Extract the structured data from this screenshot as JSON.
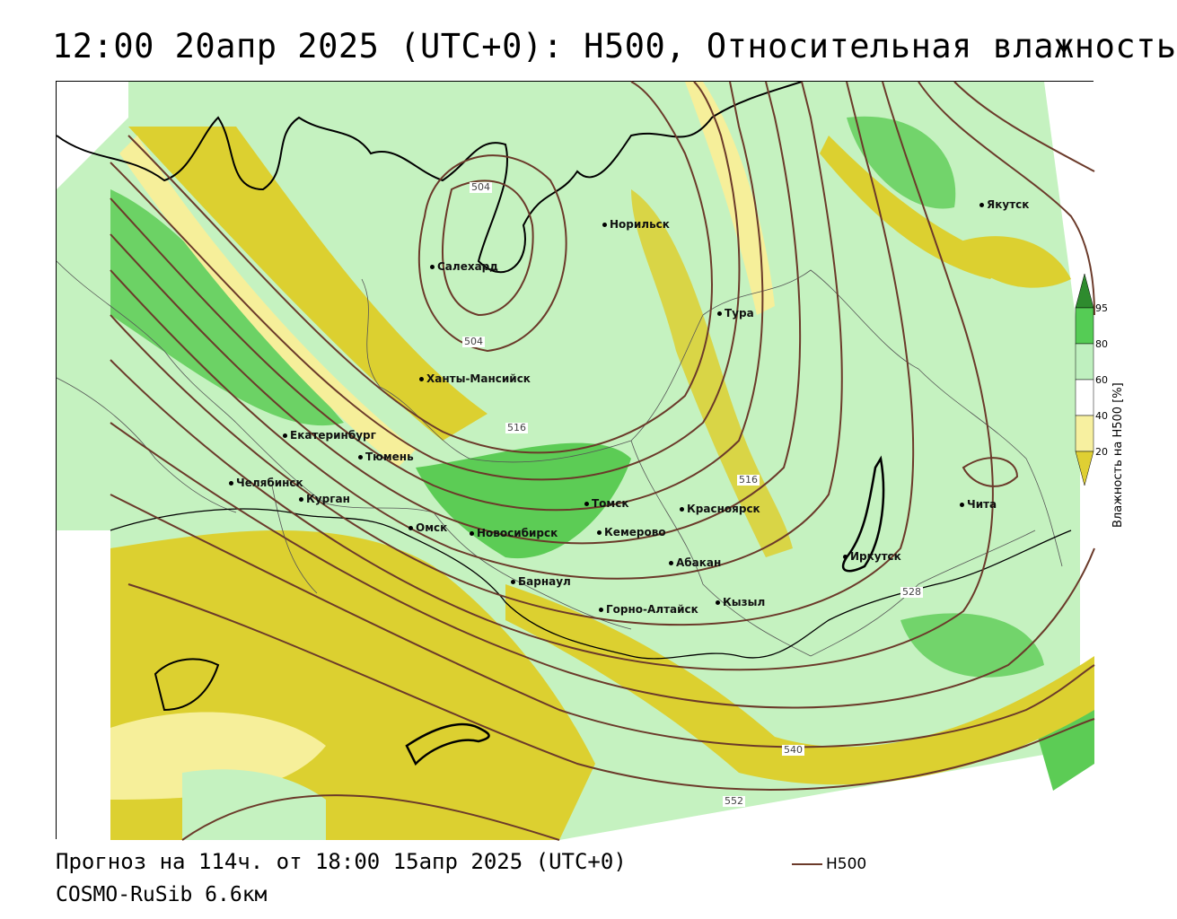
{
  "title": "12:00 20апр 2025 (UTC+0): H500, Относительная влажность",
  "footer": {
    "forecast": "Прогноз на 114ч. от 18:00 15апр 2025 (UTC+0)",
    "model": "COSMO-RuSib 6.6км",
    "contour_legend": "H500"
  },
  "legend": {
    "title": "Влажность на H500 [%]",
    "ticks": [
      "95",
      "80",
      "60",
      "40",
      "20"
    ],
    "colors": {
      "c95": "#2e8b2e",
      "c80": "#55cc55",
      "c60": "#bff0bf",
      "c40": "#ffffff",
      "c20": "#f7f0a0",
      "c0": "#dfcf33"
    }
  },
  "colors": {
    "contour": "#6b3a2a",
    "dry": "#dcd030",
    "drylight": "#f6ef9a",
    "moist": "#c5f2c0",
    "wet": "#5ccc55"
  },
  "cities": [
    {
      "name": "Якутск"
    },
    {
      "name": "Норильск"
    },
    {
      "name": "Салехард"
    },
    {
      "name": "Тура"
    },
    {
      "name": "Ханты-Мансийск"
    },
    {
      "name": "Екатеринбург"
    },
    {
      "name": "Тюмень"
    },
    {
      "name": "Челябинск"
    },
    {
      "name": "Курган"
    },
    {
      "name": "Омск"
    },
    {
      "name": "Новосибирск"
    },
    {
      "name": "Томск"
    },
    {
      "name": "Кемерово"
    },
    {
      "name": "Красноярск"
    },
    {
      "name": "Барнаул"
    },
    {
      "name": "Абакан"
    },
    {
      "name": "Горно-Алтайск"
    },
    {
      "name": "Кызыл"
    },
    {
      "name": "Иркутск"
    },
    {
      "name": "Чита"
    }
  ],
  "isolines": [
    "504",
    "504",
    "516",
    "516",
    "528",
    "540",
    "552"
  ]
}
